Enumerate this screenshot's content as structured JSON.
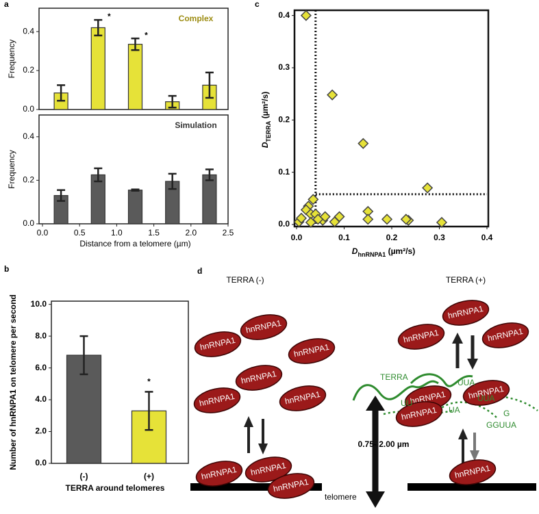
{
  "chart_data": [
    {
      "type": "bar",
      "label": "a",
      "title": "Complex",
      "x": [
        0.25,
        0.75,
        1.25,
        1.75,
        2.25
      ],
      "values": [
        0.085,
        0.42,
        0.335,
        0.04,
        0.125
      ],
      "errors": [
        0.04,
        0.04,
        0.03,
        0.03,
        0.065
      ],
      "color": "#e6e238",
      "xlim": [
        0,
        2.5
      ],
      "ylim": [
        0,
        0.52
      ],
      "yticks": [
        {
          "value": 0,
          "label": "0.0"
        },
        {
          "value": 0.2,
          "label": "0.2"
        },
        {
          "value": 0.4,
          "label": "0.4"
        }
      ],
      "ylabel": "Frequency",
      "annotations": [
        {
          "text": "*",
          "x": 0.75
        },
        {
          "text": "*",
          "x": 1.25
        }
      ]
    },
    {
      "type": "bar",
      "title": "Simulation",
      "x": [
        0.25,
        0.75,
        1.25,
        1.75,
        2.25
      ],
      "values": [
        0.13,
        0.225,
        0.155,
        0.195,
        0.225
      ],
      "errors": [
        0.025,
        0.03,
        0.003,
        0.035,
        0.025
      ],
      "color": "#5a5a5a",
      "xlim": [
        0,
        2.5
      ],
      "ylim": [
        0,
        0.5
      ],
      "yticks": [
        {
          "value": 0,
          "label": "0.0"
        },
        {
          "value": 0.2,
          "label": "0.2"
        },
        {
          "value": 0.4,
          "label": "0.4"
        }
      ],
      "xticks": [
        {
          "value": 0,
          "label": "0.0"
        },
        {
          "value": 0.5,
          "label": "0.5"
        },
        {
          "value": 1,
          "label": "1.0"
        },
        {
          "value": 1.5,
          "label": "1.5"
        },
        {
          "value": 2,
          "label": "2.0"
        },
        {
          "value": 2.5,
          "label": "2.5"
        }
      ],
      "ylabel": "Frequency",
      "xlabel": "Distance from a telomere (µm)"
    },
    {
      "type": "bar",
      "label": "b",
      "categories": [
        "(-)",
        "(+)"
      ],
      "values": [
        6.8,
        3.3
      ],
      "errors": [
        1.2,
        1.2
      ],
      "colors": [
        "#5a5a5a",
        "#e6e238"
      ],
      "ylim": [
        0,
        10.2
      ],
      "yticks": [
        {
          "value": 0,
          "label": "0.0"
        },
        {
          "value": 2,
          "label": "2.0"
        },
        {
          "value": 4,
          "label": "4.0"
        },
        {
          "value": 6,
          "label": "6.0"
        },
        {
          "value": 8,
          "label": "8.0"
        },
        {
          "value": 10,
          "label": "10.0"
        }
      ],
      "ylabel": "Number of hnRNPA1 on telomere per second",
      "xlabel": "TERRA around telomeres",
      "annotations": [
        {
          "text": "*",
          "category": "(+)"
        }
      ]
    },
    {
      "type": "scatter",
      "label": "c",
      "x": [
        0.02,
        0.075,
        0.14,
        0.275,
        0.035,
        0.025,
        0.02,
        0.03,
        0.04,
        0.055,
        0.06,
        0.09,
        0.08,
        0.15,
        0.15,
        0.19,
        0.235,
        0.23,
        0.305,
        0.005,
        0.01,
        0.03,
        0.045
      ],
      "y": [
        0.4,
        0.248,
        0.155,
        0.07,
        0.048,
        0.035,
        0.028,
        0.02,
        0.02,
        0.008,
        0.015,
        0.015,
        0.005,
        0.025,
        0.01,
        0.01,
        0.008,
        0.01,
        0.004,
        0.005,
        0.012,
        0.004,
        0.01
      ],
      "color": "#e6e238",
      "xlim": [
        0,
        0.4
      ],
      "ylim": [
        0,
        0.41
      ],
      "xticks": [
        {
          "value": 0,
          "label": "0.0"
        },
        0.1,
        0.2,
        0.3,
        0.4
      ],
      "yticks": [
        {
          "value": 0,
          "label": "0.0"
        },
        0.1,
        0.2,
        0.3,
        0.4
      ],
      "vline": 0.04,
      "hline": 0.058,
      "xlabel": {
        "symbol": "D",
        "sub": "hnRNPA1",
        "unit": " (µm²/s)"
      },
      "ylabel": {
        "symbol": "D",
        "sub": "TERRA",
        "unit": " (µm²/s)"
      }
    }
  ],
  "diagram": {
    "label": "d",
    "left_title": "TERRA (-)",
    "right_title": "TERRA (+)",
    "proteins": [
      "hnRNPA1",
      "hnRNPA1",
      "hnRNPA1",
      "hnRNPA1",
      "hnRNPA1",
      "hnRNPA1",
      "hnRNPA1",
      "hnRNPA1",
      "hnRNPA1",
      "hnRNPA1",
      "hnRNPA1",
      "hnRNPA1",
      "hnRNPA1",
      "hnRNPA1",
      "hnRNPA1",
      "hnRNPA1"
    ],
    "rna_labels": [
      "TERRA",
      "UUA",
      "UU",
      "UUA",
      "UA",
      "G",
      "GGUUA"
    ],
    "distance": "0.75- 2.00 µm",
    "telomere": "telomere"
  }
}
